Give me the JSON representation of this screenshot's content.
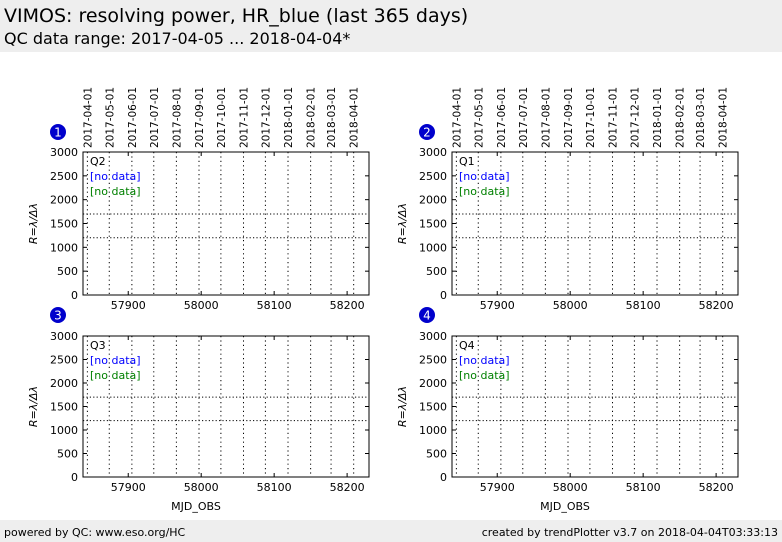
{
  "header": {
    "title": "VIMOS: resolving power, HR_blue (last 365 days)",
    "subtitle": "QC data range: 2017-04-05 ... 2018-04-04*"
  },
  "footer": {
    "left": "powered by QC: www.eso.org/HC",
    "right": "created by trendPlotter v3.7 on 2018-04-04T03:33:13"
  },
  "colors": {
    "badge": "#0000cc",
    "no_data_blue": "#0000ff",
    "no_data_green": "#008000",
    "grid": "#000000",
    "header_bg": "#eeeeee"
  },
  "chart_data": [
    {
      "type": "scatter",
      "panel_number": "1",
      "quadrant": "Q2",
      "no_data_labels": [
        "[no data]",
        "[no data]"
      ],
      "ylabel": "R=λ/Δλ",
      "xlabel": "",
      "xlim": [
        57838,
        58230
      ],
      "ylim": [
        0,
        3000
      ],
      "x_ticks": [
        57900,
        58000,
        58100,
        58200
      ],
      "y_ticks": [
        0,
        500,
        1000,
        1500,
        2000,
        2500,
        3000
      ],
      "top_date_ticks": [
        "2017-04-01",
        "2017-05-01",
        "2017-06-01",
        "2017-07-01",
        "2017-08-01",
        "2017-09-01",
        "2017-10-01",
        "2017-11-01",
        "2017-12-01",
        "2018-01-01",
        "2018-02-01",
        "2018-03-01",
        "2018-04-01"
      ],
      "top_date_mjd": [
        57844,
        57874,
        57905,
        57935,
        57966,
        57997,
        58027,
        58058,
        58088,
        58119,
        58150,
        58178,
        58209
      ],
      "reference_lines": [
        1200,
        1700
      ],
      "series": []
    },
    {
      "type": "scatter",
      "panel_number": "2",
      "quadrant": "Q1",
      "no_data_labels": [
        "[no data]",
        "[no data]"
      ],
      "ylabel": "R=λ/Δλ",
      "xlabel": "",
      "xlim": [
        57838,
        58230
      ],
      "ylim": [
        0,
        3000
      ],
      "x_ticks": [
        57900,
        58000,
        58100,
        58200
      ],
      "y_ticks": [
        0,
        500,
        1000,
        1500,
        2000,
        2500,
        3000
      ],
      "top_date_ticks": [
        "2017-04-01",
        "2017-05-01",
        "2017-06-01",
        "2017-07-01",
        "2017-08-01",
        "2017-09-01",
        "2017-10-01",
        "2017-11-01",
        "2017-12-01",
        "2018-01-01",
        "2018-02-01",
        "2018-03-01",
        "2018-04-01"
      ],
      "top_date_mjd": [
        57844,
        57874,
        57905,
        57935,
        57966,
        57997,
        58027,
        58058,
        58088,
        58119,
        58150,
        58178,
        58209
      ],
      "reference_lines": [
        1200,
        1700
      ],
      "series": []
    },
    {
      "type": "scatter",
      "panel_number": "3",
      "quadrant": "Q3",
      "no_data_labels": [
        "[no data]",
        "[no data]"
      ],
      "ylabel": "R=λ/Δλ",
      "xlabel": "MJD_OBS",
      "xlim": [
        57838,
        58230
      ],
      "ylim": [
        0,
        3000
      ],
      "x_ticks": [
        57900,
        58000,
        58100,
        58200
      ],
      "y_ticks": [
        0,
        500,
        1000,
        1500,
        2000,
        2500,
        3000
      ],
      "top_date_ticks": [],
      "top_date_mjd": [
        57844,
        57874,
        57905,
        57935,
        57966,
        57997,
        58027,
        58058,
        58088,
        58119,
        58150,
        58178,
        58209
      ],
      "reference_lines": [
        1200,
        1700
      ],
      "series": []
    },
    {
      "type": "scatter",
      "panel_number": "4",
      "quadrant": "Q4",
      "no_data_labels": [
        "[no data]",
        "[no data]"
      ],
      "ylabel": "R=λ/Δλ",
      "xlabel": "MJD_OBS",
      "xlim": [
        57838,
        58230
      ],
      "ylim": [
        0,
        3000
      ],
      "x_ticks": [
        57900,
        58000,
        58100,
        58200
      ],
      "y_ticks": [
        0,
        500,
        1000,
        1500,
        2000,
        2500,
        3000
      ],
      "top_date_ticks": [],
      "top_date_mjd": [
        57844,
        57874,
        57905,
        57935,
        57966,
        57997,
        58027,
        58058,
        58088,
        58119,
        58150,
        58178,
        58209
      ],
      "reference_lines": [
        1200,
        1700
      ],
      "series": []
    }
  ]
}
